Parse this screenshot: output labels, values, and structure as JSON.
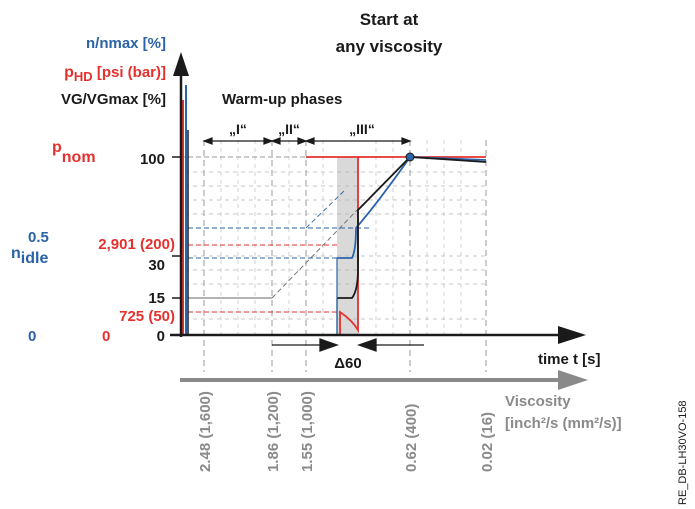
{
  "labels": {
    "title_line1": "Start at",
    "title_line2": "any viscosity",
    "warmup": "Warm-up phases",
    "phase1": "„I“",
    "phase2": "„II“",
    "phase3": "„III“",
    "y_blue": "n/nmax [%]",
    "y_red_p": "p",
    "y_red_sub": "HD",
    "y_red_rest": "[psi (bar)]",
    "y_black": "VG/VGmax [%]",
    "pnom_p": "p",
    "pnom_sub": "nom",
    "nidle_n": "n",
    "nidle_sub": "idle",
    "val_100": "100",
    "val_05": "0.5",
    "val_2901": "2,901 (200)",
    "val_30": "30",
    "val_15": "15",
    "val_725": "725 (50)",
    "val_0_blue": "0",
    "val_0_red": "0",
    "val_0_black": "0",
    "delta60": "Δ60",
    "time_axis": "time t [s]",
    "viscosity_line1": "Viscosity",
    "viscosity_line2": "[inch²/s (mm²/s)]",
    "doc_id": "RE_DB-LH30VO-158"
  },
  "viscosity_ticks": [
    "2.48 (1,600)",
    "1.86 (1,200)",
    "1.55 (1,000)",
    "0.62 (400)",
    "0.02 (16)"
  ],
  "colors": {
    "blue": "#2a63a8",
    "red": "#e5312e",
    "black": "#1a1a1a",
    "gray": "#8a8a8a",
    "band": "#d9d9d9"
  }
}
